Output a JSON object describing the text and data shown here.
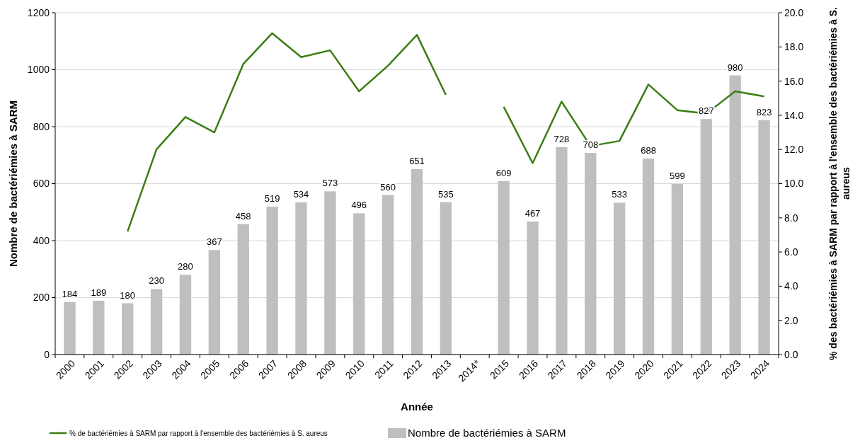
{
  "chart_data": {
    "type": "bar",
    "xlabel": "Année",
    "ylabel": "Nombre de bactériémies à SARM",
    "y2label": "% des bactériémies à SARM par rapport à l'ensemble des bactériémies à S. aureus",
    "categories": [
      "2000",
      "2001",
      "2002",
      "2003",
      "2004",
      "2005",
      "2006",
      "2007",
      "2008",
      "2009",
      "2010",
      "2011",
      "2012",
      "2013",
      "2014*",
      "2015",
      "2016",
      "2017",
      "2018",
      "2019",
      "2020",
      "2021",
      "2022",
      "2023",
      "2024"
    ],
    "series": [
      {
        "name": "Nombre de bactériémies à SARM",
        "color": "#bfbfbf",
        "values": [
          184,
          189,
          180,
          230,
          280,
          367,
          458,
          519,
          534,
          573,
          496,
          560,
          651,
          535,
          null,
          609,
          467,
          728,
          708,
          533,
          688,
          599,
          827,
          980,
          823
        ],
        "value_labels": [
          "184",
          "189",
          "180",
          "230",
          "280",
          "367",
          "458",
          "519",
          "534",
          "573",
          "496",
          "560",
          "651",
          "535",
          null,
          "609",
          "467",
          "728",
          "708",
          "533",
          "688",
          "599",
          "827",
          "980",
          "823"
        ]
      },
      {
        "name": "% de bactériémies à SARM par rapport à l'ensemble des bactériémies à S. aureus",
        "type": "line",
        "axis": "y2",
        "color": "#3a7d12",
        "values": [
          null,
          null,
          7.2,
          12.0,
          13.9,
          13.0,
          17.0,
          18.8,
          17.4,
          17.8,
          15.4,
          16.9,
          18.7,
          15.2,
          null,
          14.5,
          11.2,
          14.8,
          12.2,
          12.5,
          15.8,
          14.3,
          14.1,
          15.4,
          15.1
        ]
      }
    ],
    "ylim": [
      0,
      1200
    ],
    "yticks": [
      0,
      200,
      400,
      600,
      800,
      1000,
      1200
    ],
    "y2lim": [
      0,
      20
    ],
    "y2ticks": [
      {
        "value": 0,
        "label": "0.0"
      },
      {
        "value": 2,
        "label": "2.0"
      },
      {
        "value": 4,
        "label": "4.0"
      },
      {
        "value": 6,
        "label": "6.0"
      },
      {
        "value": 8,
        "label": "8.0"
      },
      {
        "value": 10,
        "label": "10.0"
      },
      {
        "value": 12,
        "label": "12.0"
      },
      {
        "value": 14,
        "label": "14.0"
      },
      {
        "value": 16,
        "label": "16.0"
      },
      {
        "value": 18,
        "label": "18.0"
      },
      {
        "value": 20,
        "label": "20.0"
      }
    ],
    "grid": "y",
    "legend": "bottom",
    "marker": "none",
    "line_style": "solid"
  }
}
